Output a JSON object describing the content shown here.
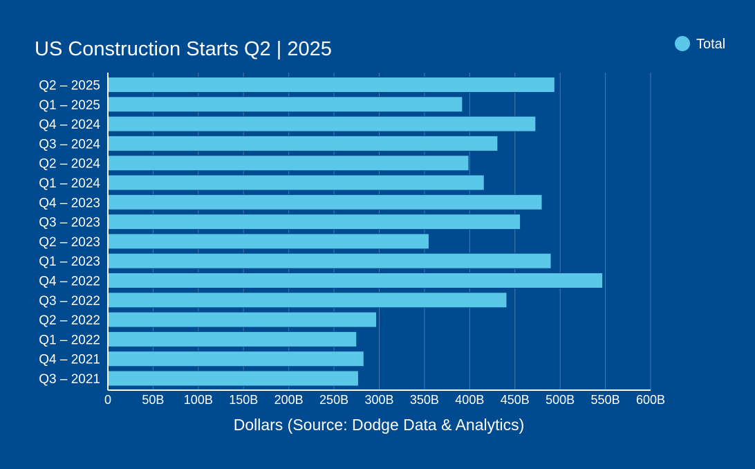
{
  "chart_data": {
    "type": "bar",
    "orientation": "horizontal",
    "title": "US Construction Starts Q2 | 2025",
    "xlabel": "Dollars (Source: Dodge Data & Analytics)",
    "ylabel": "",
    "categories": [
      "Q2 – 2025",
      "Q1 – 2025",
      "Q4 – 2024",
      "Q3 – 2024",
      "Q2 – 2024",
      "Q1 – 2024",
      "Q4 – 2023",
      "Q3 – 2023",
      "Q2 – 2023",
      "Q1 – 2023",
      "Q4 – 2022",
      "Q3 – 2022",
      "Q2 – 2022",
      "Q1 – 2022",
      "Q4 – 2021",
      "Q3 – 2021"
    ],
    "series": [
      {
        "name": "Total",
        "color": "#5bc8ea",
        "values": [
          494,
          392,
          473,
          431,
          399,
          416,
          480,
          456,
          355,
          490,
          547,
          441,
          297,
          275,
          283,
          277
        ]
      }
    ],
    "xlim": [
      0,
      600
    ],
    "xticks": [
      0,
      50,
      100,
      150,
      200,
      250,
      300,
      350,
      400,
      450,
      500,
      550,
      600
    ],
    "xtick_labels": [
      "0",
      "50B",
      "100B",
      "150B",
      "200B",
      "250B",
      "300B",
      "350B",
      "400B",
      "450B",
      "500B",
      "550B",
      "600B"
    ],
    "grid": true,
    "legend_position": "top-right",
    "colors": {
      "background": "#004a8f",
      "bar": "#5bc8ea",
      "grid": "#4a78b0",
      "text": "#ffffff"
    }
  }
}
